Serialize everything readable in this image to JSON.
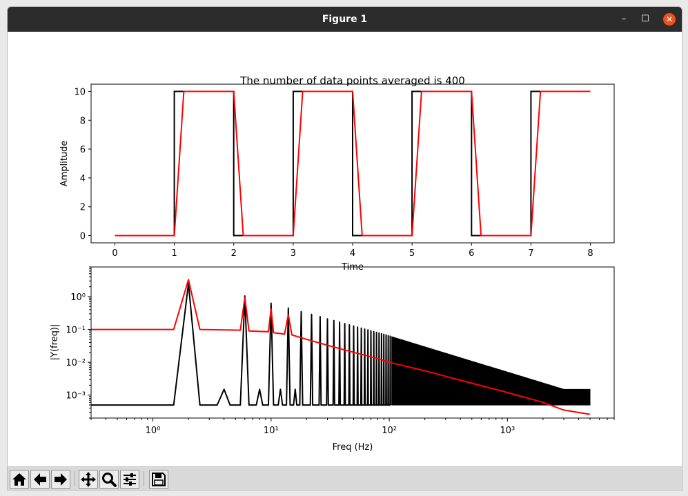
{
  "window": {
    "title": "Figure 1",
    "minimize_label": "–",
    "maximize_label": "☐",
    "close_label": "✕"
  },
  "toolbar": {
    "buttons": [
      {
        "name": "home-button",
        "icon": "home-icon"
      },
      {
        "name": "back-button",
        "icon": "arrow-left-icon"
      },
      {
        "name": "forward-button",
        "icon": "arrow-right-icon"
      },
      {
        "name": "pan-button",
        "icon": "move-icon"
      },
      {
        "name": "zoom-button",
        "icon": "magnifier-icon"
      },
      {
        "name": "configure-subplots-button",
        "icon": "sliders-icon"
      },
      {
        "name": "save-button",
        "icon": "floppy-disk-icon"
      }
    ]
  },
  "chart_data": [
    {
      "type": "line",
      "title": "The number of data points averaged is 400",
      "xlabel": "Time",
      "ylabel": "Amplitude",
      "xlim": [
        -0.4,
        8.4
      ],
      "ylim": [
        -0.5,
        10.5
      ],
      "xticks": [
        0,
        1,
        2,
        3,
        4,
        5,
        6,
        7,
        8
      ],
      "xtick_labels": [
        "0",
        "1",
        "2",
        "3",
        "4",
        "5",
        "6",
        "7",
        "8"
      ],
      "yticks": [
        0,
        2,
        4,
        6,
        8,
        10
      ],
      "ytick_labels": [
        "0",
        "2",
        "4",
        "6",
        "8",
        "10"
      ],
      "series": [
        {
          "color": "#000000",
          "x": [
            0,
            1,
            1,
            2,
            2,
            3,
            3,
            4,
            4,
            5,
            5,
            6,
            6,
            7,
            7,
            8
          ],
          "y": [
            0,
            0,
            10,
            10,
            0,
            0,
            10,
            10,
            0,
            0,
            10,
            10,
            0,
            0,
            10,
            10
          ]
        },
        {
          "color": "#ff0000",
          "x": [
            0,
            1,
            1.16,
            2,
            2.16,
            3,
            3.16,
            4,
            4.16,
            5,
            5.16,
            6,
            6.16,
            7,
            7.16,
            8
          ],
          "y": [
            0,
            0,
            10,
            10,
            0,
            0,
            10,
            10,
            0,
            0,
            10,
            10,
            0,
            0,
            10,
            10
          ]
        }
      ]
    },
    {
      "type": "line",
      "xscale": "log",
      "yscale": "log",
      "xlabel": "Freq (Hz)",
      "ylabel": "|Y(freq)|",
      "xlim": [
        0.3,
        8000
      ],
      "ylim": [
        0.0002,
        8
      ],
      "xticks": [
        1,
        10,
        100,
        1000
      ],
      "xtick_labels": [
        "10⁰",
        "10¹",
        "10²",
        "10³"
      ],
      "yticks": [
        0.001,
        0.01,
        0.1,
        1
      ],
      "ytick_labels": [
        "10⁻³",
        "10⁻²",
        "10⁻¹",
        "10⁰"
      ],
      "series": [
        {
          "color": "#000000",
          "description_peaks": "odd harmonics of 1 Hz, amplitude ~ 6.4/f, baseline ~ 5e-4",
          "peaks_x": [
            2,
            6,
            10,
            14,
            18,
            22,
            26,
            30,
            34,
            38,
            42,
            46,
            50,
            54,
            58,
            62,
            66,
            70,
            74,
            78,
            82,
            86,
            90,
            94,
            98,
            102
          ],
          "peaks_y": [
            2.5,
            1.05,
            0.63,
            0.45,
            0.35,
            0.29,
            0.245,
            0.21,
            0.187,
            0.167,
            0.151,
            0.138,
            0.127,
            0.118,
            0.11,
            0.103,
            0.097,
            0.091,
            0.086,
            0.082,
            0.078,
            0.074,
            0.071,
            0.068,
            0.065,
            0.062
          ],
          "secondary_peaks_x": [
            4,
            8,
            12,
            16
          ],
          "secondary_peaks_y": [
            0.0015,
            0.0015,
            0.0015,
            0.0015
          ],
          "baseline_y": 0.0005,
          "band_x": [
            105,
            5000
          ],
          "band_top_y": [
            0.06,
            0.0015
          ],
          "band_shoulder_x": 3000,
          "band_bottom_y": 0.0005
        },
        {
          "color": "#ff0000",
          "x": [
            0.3,
            1.5,
            2,
            2.5,
            5.5,
            6,
            6.5,
            9.5,
            10,
            10.5,
            13,
            14,
            15,
            20,
            30,
            50,
            80,
            100,
            200,
            500,
            1000,
            2000,
            3000,
            5000
          ],
          "y": [
            0.1,
            0.1,
            3.3,
            0.1,
            0.095,
            0.95,
            0.09,
            0.085,
            0.42,
            0.08,
            0.072,
            0.28,
            0.068,
            0.05,
            0.033,
            0.02,
            0.013,
            0.01,
            0.0055,
            0.0023,
            0.0012,
            0.0006,
            0.00035,
            0.00026
          ]
        }
      ]
    }
  ]
}
